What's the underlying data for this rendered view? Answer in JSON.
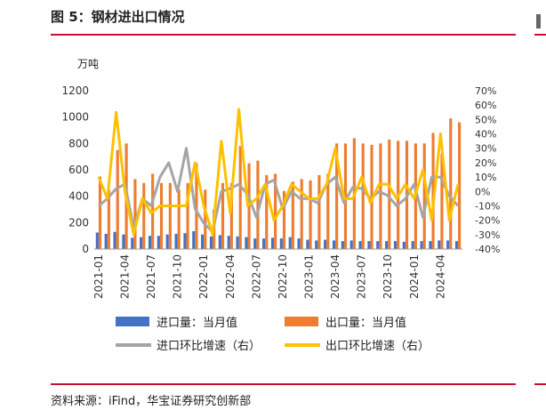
{
  "header": {
    "title": "图 5：钢材进出口情况"
  },
  "footer": {
    "source": "资料来源：iFind，华宝证券研究创新部"
  },
  "chart_data": {
    "type": "bar",
    "left_axis": {
      "unit_label": "万吨",
      "ylim": [
        0,
        1200
      ],
      "ticks": [
        "0",
        "200",
        "400",
        "600",
        "800",
        "1000",
        "1200"
      ]
    },
    "right_axis": {
      "ylim": [
        -40,
        70
      ],
      "ticks": [
        "-40%",
        "-30%",
        "-20%",
        "-10%",
        "0%",
        "10%",
        "20%",
        "30%",
        "40%",
        "50%",
        "60%",
        "70%"
      ]
    },
    "x_tick_labels": [
      "2021-01",
      "2021-04",
      "2021-07",
      "2021-10",
      "2022-01",
      "2022-04",
      "2022-07",
      "2022-10",
      "2023-01",
      "2023-04",
      "2023-07",
      "2023-10",
      "2024-01",
      "2024-04"
    ],
    "categories": [
      "2021-01",
      "2021-02",
      "2021-03",
      "2021-04",
      "2021-05",
      "2021-06",
      "2021-07",
      "2021-08",
      "2021-09",
      "2021-10",
      "2021-11",
      "2021-12",
      "2022-01",
      "2022-02",
      "2022-03",
      "2022-04",
      "2022-05",
      "2022-06",
      "2022-07",
      "2022-08",
      "2022-09",
      "2022-10",
      "2022-11",
      "2022-12",
      "2023-01",
      "2023-02",
      "2023-03",
      "2023-04",
      "2023-05",
      "2023-06",
      "2023-07",
      "2023-08",
      "2023-09",
      "2023-10",
      "2023-11",
      "2023-12",
      "2024-01",
      "2024-02",
      "2024-03",
      "2024-04",
      "2024-05",
      "2024-06"
    ],
    "series": [
      {
        "name": "进口量：当月值",
        "axis": "left",
        "kind": "bar",
        "color": "#4472c4",
        "values": [
          125,
          115,
          130,
          110,
          85,
          90,
          100,
          100,
          110,
          115,
          120,
          135,
          110,
          95,
          105,
          100,
          95,
          90,
          80,
          80,
          85,
          80,
          90,
          80,
          70,
          65,
          70,
          65,
          60,
          65,
          60,
          60,
          60,
          60,
          60,
          55,
          60,
          60,
          60,
          65,
          65,
          60
        ]
      },
      {
        "name": "出口量：当月值",
        "axis": "left",
        "kind": "bar",
        "color": "#ed7d31",
        "values": [
          550,
          450,
          750,
          800,
          530,
          500,
          570,
          500,
          500,
          450,
          500,
          650,
          450,
          300,
          500,
          500,
          780,
          650,
          670,
          560,
          570,
          440,
          510,
          530,
          520,
          560,
          570,
          800,
          800,
          840,
          800,
          790,
          800,
          830,
          820,
          820,
          800,
          800,
          880,
          720,
          990,
          960
        ]
      },
      {
        "name": "进口环比增速（右）",
        "axis": "right",
        "kind": "line",
        "color": "#a5a5a5",
        "values": [
          -10,
          -5,
          2,
          5,
          -25,
          -5,
          -10,
          10,
          20,
          0,
          30,
          -12,
          -22,
          -28,
          0,
          2,
          5,
          -2,
          -18,
          5,
          8,
          -12,
          0,
          -5,
          -5,
          -8,
          5,
          10,
          -8,
          3,
          2,
          -5,
          0,
          -3,
          -10,
          -5,
          5,
          -18,
          10,
          10,
          -3,
          -10
        ]
      },
      {
        "name": "出口环比增速（右）",
        "axis": "right",
        "kind": "line",
        "color": "#ffc000",
        "values": [
          10,
          -5,
          55,
          0,
          -30,
          -5,
          -15,
          -10,
          -10,
          -10,
          -10,
          20,
          -10,
          -30,
          35,
          -15,
          57,
          -10,
          -5,
          5,
          -20,
          -10,
          5,
          0,
          -5,
          -5,
          5,
          30,
          -5,
          -5,
          10,
          -8,
          5,
          5,
          -5,
          5,
          -5,
          15,
          -20,
          40,
          -20,
          5
        ]
      }
    ],
    "legend_position": "bottom",
    "grid": false
  }
}
